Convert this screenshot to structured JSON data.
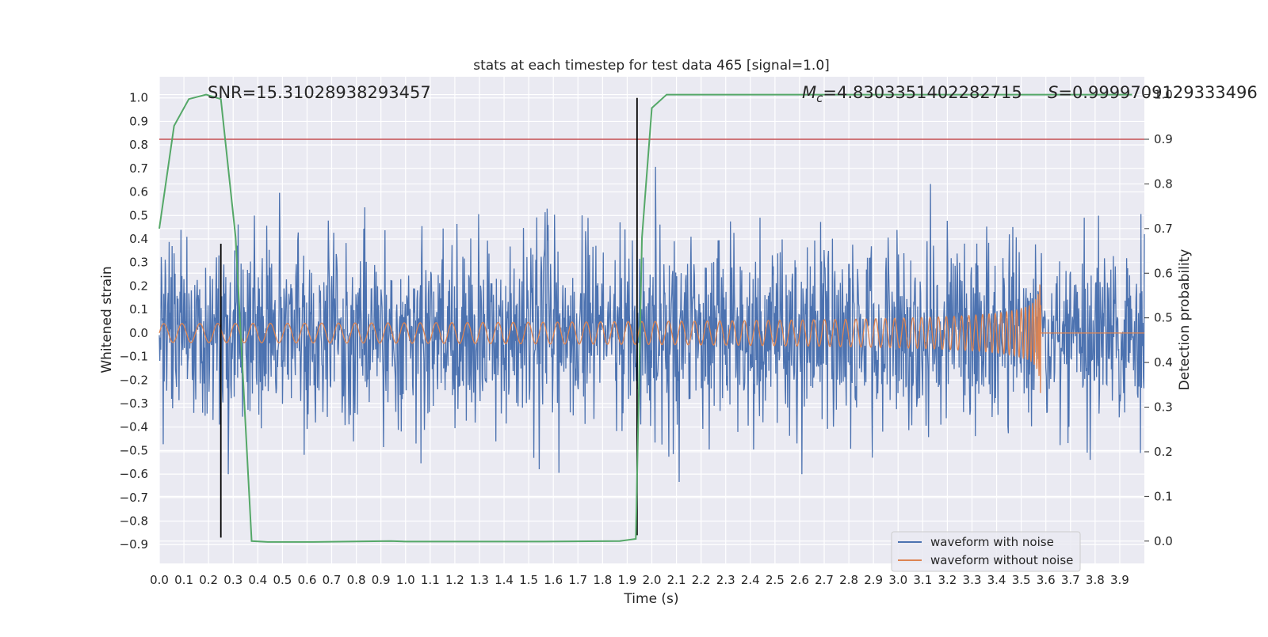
{
  "chart_data": {
    "type": "line",
    "title": "stats at each timestep for test data 465 [signal=1.0]",
    "xlabel": "Time (s)",
    "ylabel": "Whitened strain",
    "y2label": "Detection probability",
    "xlim": [
      0.0,
      4.0
    ],
    "ylim": [
      -0.98,
      1.09
    ],
    "y2lim": [
      -0.05,
      1.04
    ],
    "x_ticks": [
      "0.0",
      "0.1",
      "0.2",
      "0.3",
      "0.4",
      "0.5",
      "0.6",
      "0.7",
      "0.8",
      "0.9",
      "1.0",
      "1.1",
      "1.2",
      "1.3",
      "1.4",
      "1.5",
      "1.6",
      "1.7",
      "1.8",
      "1.9",
      "2.0",
      "2.1",
      "2.2",
      "2.3",
      "2.4",
      "2.5",
      "2.6",
      "2.7",
      "2.8",
      "2.9",
      "3.0",
      "3.1",
      "3.2",
      "3.3",
      "3.4",
      "3.5",
      "3.6",
      "3.7",
      "3.8",
      "3.9"
    ],
    "y_ticks": [
      "−0.9",
      "−0.8",
      "−0.7",
      "−0.6",
      "−0.5",
      "−0.4",
      "−0.3",
      "−0.2",
      "−0.1",
      "0.0",
      "0.1",
      "0.2",
      "0.3",
      "0.4",
      "0.5",
      "0.6",
      "0.7",
      "0.8",
      "0.9",
      "1.0"
    ],
    "y2_ticks": [
      "0.0",
      "0.1",
      "0.2",
      "0.3",
      "0.4",
      "0.5",
      "0.6",
      "0.7",
      "0.8",
      "0.9",
      "1.0"
    ],
    "grid": true,
    "legend_placement": "lower-right",
    "background_color": "#eaeaf2",
    "annotations": {
      "snr": "SNR=15.31028938293457",
      "mc_symbol": "M",
      "mc_subscript": "c",
      "mc_value": "=4.8303351402282715",
      "s_symbol": "S",
      "s_value": "=0.9999709129333496"
    },
    "threshold_line": {
      "axis": "y2",
      "value": 0.9,
      "color": "#c44e52"
    },
    "vertical_markers": [
      {
        "x": 0.25,
        "y_range": [
          -0.87,
          0.38
        ]
      },
      {
        "x": 1.94,
        "y_range": [
          -0.86,
          1.0
        ]
      }
    ],
    "series": [
      {
        "name": "waveform with noise",
        "color": "#4c72b0",
        "type": "noise",
        "amplitude_range": [
          -0.87,
          1.0
        ],
        "typical_std": 0.2,
        "n_points": 2000
      },
      {
        "name": "waveform without noise",
        "color": "#dd8452",
        "type": "chirp",
        "start_amplitude": 0.04,
        "peak_amplitude": 0.38,
        "merger_time": 3.58,
        "end_value": 0.0
      },
      {
        "name": "",
        "axis": "y2",
        "color": "#55a868",
        "type": "line",
        "x": [
          0.0,
          0.06,
          0.12,
          0.19,
          0.25,
          0.31,
          0.375,
          0.44,
          0.625,
          0.94,
          1.0,
          1.25,
          1.56,
          1.87,
          1.935,
          1.96,
          2.0,
          2.06,
          2.5,
          3.0,
          3.5,
          3.95
        ],
        "y": [
          0.7,
          0.93,
          0.99,
          1.0,
          0.99,
          0.68,
          0.0,
          -0.002,
          -0.002,
          0.0,
          -0.001,
          -0.001,
          -0.001,
          0.0,
          0.005,
          0.68,
          0.97,
          1.0,
          1.0,
          1.0,
          1.0,
          1.0
        ]
      }
    ]
  },
  "legend": {
    "items": [
      {
        "label": "waveform with noise",
        "color": "#4c72b0"
      },
      {
        "label": "waveform without noise",
        "color": "#dd8452"
      }
    ]
  }
}
